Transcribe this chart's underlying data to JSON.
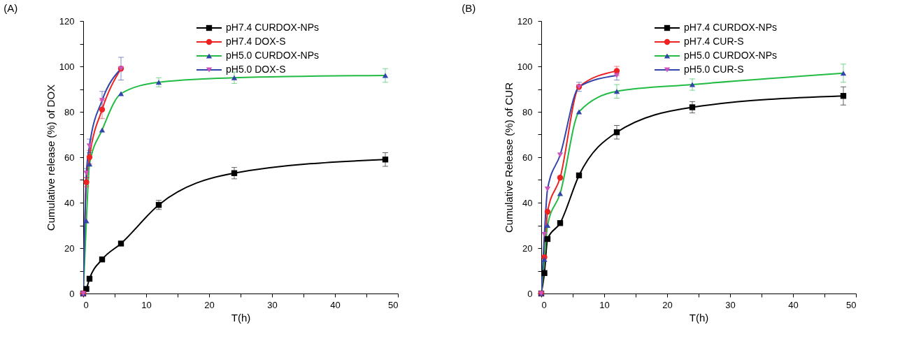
{
  "chart_data": [
    {
      "type": "line",
      "title": "(A)",
      "xlabel": "T(h)",
      "ylabel": "Cumulative release (%) of DOX",
      "xlim": [
        0,
        50
      ],
      "xticks": [
        0,
        {
          "value": 5,
          "label": null
        },
        10,
        {
          "value": 15,
          "label": null
        },
        20,
        {
          "value": 25,
          "label": null
        },
        30,
        {
          "value": 35,
          "label": null
        },
        40,
        {
          "value": 45,
          "label": null
        },
        50
      ],
      "ylim": [
        0,
        120
      ],
      "yticks": [
        0,
        {
          "value": 10,
          "label": null
        },
        20,
        {
          "value": 30,
          "label": null
        },
        40,
        {
          "value": 50,
          "label": null
        },
        60,
        {
          "value": 70,
          "label": null
        },
        80,
        {
          "value": 90,
          "label": null
        },
        100,
        {
          "value": 110,
          "label": null
        },
        120
      ],
      "grid": false,
      "legend": "top right",
      "line_style": "solid",
      "series": [
        {
          "name": "pH7.4 CURDOX-NPs",
          "color": "#000000",
          "marker": "square",
          "colors": [
            "#000000",
            "#000000",
            "#000000",
            "#000000",
            "#000000",
            "#000000",
            "#000000",
            "#000000"
          ],
          "x": [
            0,
            0.5,
            1,
            3,
            6,
            12,
            24,
            48
          ],
          "values": [
            0,
            2,
            6.5,
            15,
            22,
            39,
            53,
            59
          ],
          "errors": [
            null,
            null,
            null,
            null,
            null,
            2,
            2.5,
            3
          ]
        },
        {
          "name": "pH7.4 DOX-S",
          "color": "#ee2222",
          "marker": "circle",
          "colors": [
            "#ee2222",
            "#ee2222",
            "#ee2222",
            "#ee2222",
            "#ee2222"
          ],
          "x": [
            0,
            0.5,
            1,
            3,
            6
          ],
          "values": [
            0,
            49,
            60,
            81,
            99
          ],
          "errors": [
            null,
            2,
            3,
            4,
            null
          ]
        },
        {
          "name": "pH5.0 CURDOX-NPs",
          "color": "#22bb44",
          "marker": "triangle",
          "colors": [
            "#3344aa",
            "#3344aa",
            "#3344aa",
            "#3344aa",
            "#3344aa",
            "#3344aa",
            "#3344aa",
            "#3344aa"
          ],
          "x": [
            0,
            0.5,
            1,
            3,
            6,
            12,
            24,
            48
          ],
          "values": [
            0,
            32,
            57,
            72,
            88,
            93,
            95,
            96
          ],
          "errors": [
            null,
            null,
            null,
            null,
            null,
            2,
            2.5,
            3
          ]
        },
        {
          "name": "pH5.0 DOX-S",
          "color": "#3344aa",
          "marker": "triangle-down",
          "colors": [
            "#cc55bb",
            "#cc55bb",
            "#cc55bb",
            "#cc55bb",
            "#cc55bb"
          ],
          "x": [
            0,
            0.5,
            1,
            3,
            6
          ],
          "values": [
            0,
            53,
            65,
            85,
            99
          ],
          "errors": [
            null,
            2,
            3,
            4,
            5
          ]
        }
      ]
    },
    {
      "type": "line",
      "title": "(B)",
      "xlabel": "T(h)",
      "ylabel": "Cumulative Release (%) of CUR",
      "xlim": [
        0,
        50
      ],
      "xticks": [
        0,
        {
          "value": 5,
          "label": null
        },
        10,
        {
          "value": 15,
          "label": null
        },
        20,
        {
          "value": 25,
          "label": null
        },
        30,
        {
          "value": 35,
          "label": null
        },
        40,
        {
          "value": 45,
          "label": null
        },
        50
      ],
      "ylim": [
        0,
        120
      ],
      "yticks": [
        0,
        {
          "value": 10,
          "label": null
        },
        20,
        {
          "value": 30,
          "label": null
        },
        40,
        {
          "value": 50,
          "label": null
        },
        60,
        {
          "value": 70,
          "label": null
        },
        80,
        {
          "value": 90,
          "label": null
        },
        100,
        {
          "value": 110,
          "label": null
        },
        120
      ],
      "grid": false,
      "legend": "top right",
      "line_style": "solid",
      "series": [
        {
          "name": "pH7.4 CURDOX-NPs",
          "color": "#000000",
          "marker": "square",
          "colors": [
            "#000000",
            "#000000",
            "#000000",
            "#000000",
            "#000000",
            "#000000",
            "#000000",
            "#000000"
          ],
          "x": [
            0,
            0.5,
            1,
            3,
            6,
            12,
            24,
            48
          ],
          "values": [
            0,
            9,
            24,
            31,
            52,
            71,
            82,
            87
          ],
          "errors": [
            null,
            null,
            null,
            null,
            null,
            3,
            2.5,
            4
          ]
        },
        {
          "name": "pH7.4 CUR-S",
          "color": "#ee2222",
          "marker": "circle",
          "colors": [
            "#ee2222",
            "#ee2222",
            "#ee2222",
            "#ee2222",
            "#ee2222",
            "#ee2222"
          ],
          "x": [
            0,
            0.5,
            1,
            3,
            6,
            12
          ],
          "values": [
            0,
            16,
            36,
            51,
            91,
            98
          ],
          "errors": [
            null,
            null,
            null,
            null,
            null,
            2
          ]
        },
        {
          "name": "pH5.0 CURDOX-NPs",
          "color": "#22bb44",
          "marker": "triangle",
          "colors": [
            "#3344aa",
            "#3344aa",
            "#3344aa",
            "#3344aa",
            "#3344aa",
            "#3344aa",
            "#3344aa",
            "#3344aa"
          ],
          "x": [
            0,
            0.5,
            1,
            3,
            6,
            12,
            24,
            48
          ],
          "values": [
            0,
            15,
            30,
            44,
            80,
            89,
            92,
            97
          ],
          "errors": [
            null,
            null,
            null,
            null,
            null,
            3,
            2.5,
            4
          ]
        },
        {
          "name": "pH5.0 CUR-S",
          "color": "#3344aa",
          "marker": "triangle-down",
          "colors": [
            "#cc55bb",
            "#cc55bb",
            "#cc55bb",
            "#cc55bb",
            "#cc55bb",
            "#cc55bb"
          ],
          "x": [
            0,
            0.5,
            1,
            3,
            6,
            12
          ],
          "values": [
            0,
            26,
            46,
            61,
            91,
            96
          ],
          "errors": [
            null,
            null,
            null,
            null,
            2,
            2
          ]
        }
      ]
    }
  ]
}
